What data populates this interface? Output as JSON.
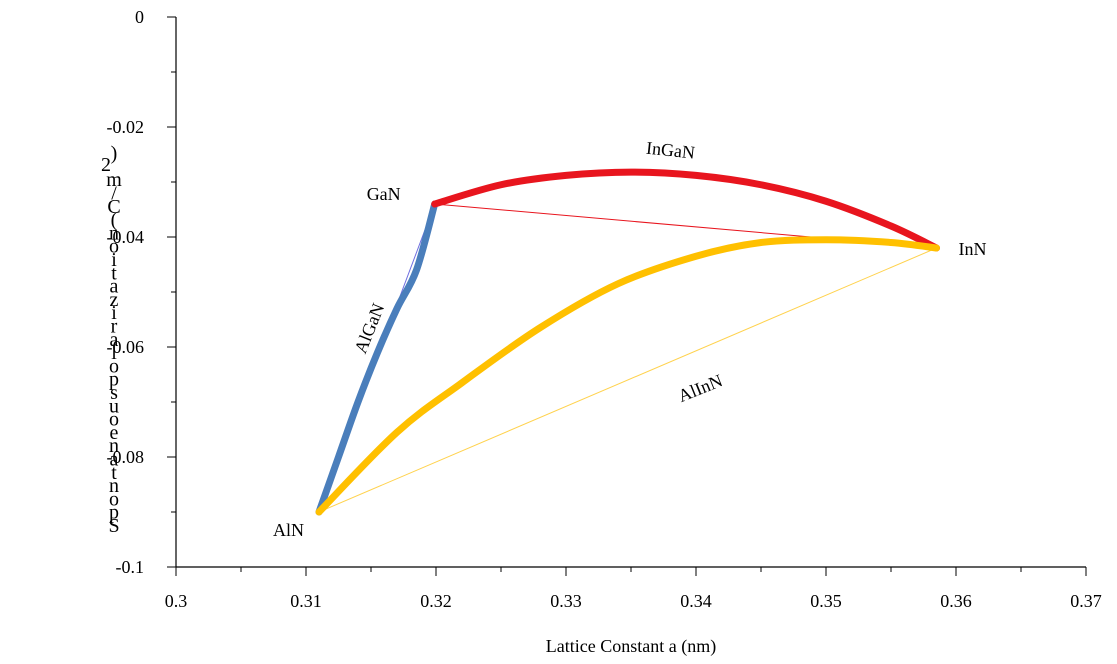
{
  "chart_data": {
    "type": "line",
    "title": "",
    "xlabel": "Lattice Constant a (nm)",
    "ylabel_chars": [
      "S",
      "p",
      "o",
      "n",
      "t",
      "a",
      "n",
      "e",
      "o",
      "u",
      "s",
      "p",
      "o",
      "l",
      "a",
      "r",
      "i",
      "z",
      "a",
      "t",
      "i",
      "o",
      "n",
      "(",
      "C",
      "/",
      "m",
      "2",
      ")"
    ],
    "xlim": [
      0.3,
      0.37
    ],
    "ylim": [
      -0.1,
      0
    ],
    "x_ticks": [
      "0.3",
      "0.31",
      "0.32",
      "0.33",
      "0.34",
      "0.35",
      "0.36",
      "0.37"
    ],
    "y_ticks": [
      "-0.1",
      "-0.08",
      "-0.06",
      "-0.04",
      "-0.02",
      "0"
    ],
    "grid": false,
    "points": [
      {
        "label": "AlN",
        "x": 0.311,
        "y": -0.09
      },
      {
        "label": "GaN",
        "x": 0.3199,
        "y": -0.034
      },
      {
        "label": "InN",
        "x": 0.3585,
        "y": -0.042
      }
    ],
    "series": [
      {
        "name": "AlGaN",
        "color": "#4a7ebb",
        "style": "bowed",
        "x": [
          0.311,
          0.3125,
          0.314,
          0.3155,
          0.317,
          0.3185,
          0.3199
        ],
        "y": [
          -0.09,
          -0.08,
          -0.07,
          -0.061,
          -0.053,
          -0.046,
          -0.034
        ]
      },
      {
        "name": "InGaN",
        "color": "#e8151e",
        "style": "bowed",
        "x": [
          0.3199,
          0.325,
          0.33,
          0.335,
          0.34,
          0.345,
          0.35,
          0.355,
          0.3585
        ],
        "y": [
          -0.034,
          -0.0305,
          -0.0288,
          -0.0282,
          -0.0288,
          -0.0305,
          -0.0335,
          -0.038,
          -0.042
        ]
      },
      {
        "name": "AlInN",
        "color": "#ffc000",
        "style": "bowed",
        "x": [
          0.311,
          0.317,
          0.322,
          0.328,
          0.334,
          0.34,
          0.345,
          0.35,
          0.355,
          0.3585
        ],
        "y": [
          -0.09,
          -0.0755,
          -0.0665,
          -0.0565,
          -0.0485,
          -0.0435,
          -0.041,
          -0.0405,
          -0.041,
          -0.042
        ]
      },
      {
        "name": "",
        "color": "#6f6fe0",
        "style": "linear",
        "x": [
          0.311,
          0.3199
        ],
        "y": [
          -0.09,
          -0.034
        ]
      },
      {
        "name": "",
        "color": "#e8151e",
        "style": "linear",
        "x": [
          0.3199,
          0.3585
        ],
        "y": [
          -0.034,
          -0.042
        ]
      },
      {
        "name": "",
        "color": "#ffd24d",
        "style": "linear",
        "x": [
          0.311,
          0.3585
        ],
        "y": [
          -0.09,
          -0.042
        ]
      }
    ],
    "curve_labels": [
      {
        "text": "AlGaN",
        "x": 0.3153,
        "y": -0.057
      },
      {
        "text": "InGaN",
        "x": 0.338,
        "y": -0.0253
      },
      {
        "text": "AlInN",
        "x": 0.3405,
        "y": -0.0685
      }
    ]
  }
}
